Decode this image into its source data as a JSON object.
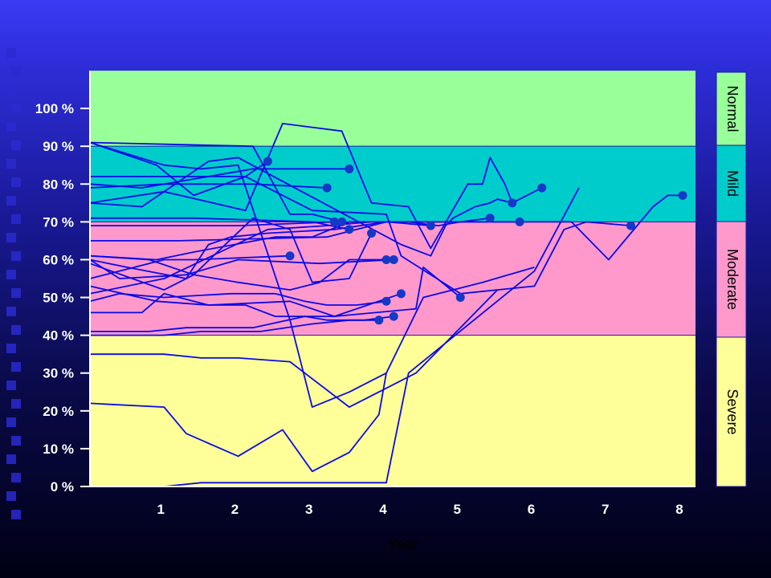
{
  "colors": {
    "background_top": "#3b3bf6",
    "background_bottom": "#000014",
    "line": "#0a0ae8",
    "marker": "#1538c8",
    "axis": "#ffffff"
  },
  "chart_data": {
    "type": "line",
    "xlabel": "Year",
    "ylabel": "",
    "xlim": [
      0,
      8.1
    ],
    "ylim": [
      0,
      110
    ],
    "x_ticks": [
      "1",
      "2",
      "3",
      "4",
      "5",
      "6",
      "7",
      "8"
    ],
    "y_ticks": [
      "0 %",
      "10 %",
      "20 %",
      "30 %",
      "40 %",
      "50 %",
      "60 %",
      "70 %",
      "80 %",
      "90 %",
      "100 %"
    ],
    "y_tick_values": [
      0,
      10,
      20,
      30,
      40,
      50,
      60,
      70,
      80,
      90,
      100
    ],
    "grid": false,
    "bands": [
      {
        "label": "Normal",
        "from": 90,
        "to": 110,
        "color": "#99ff99"
      },
      {
        "label": "Mild",
        "from": 70,
        "to": 90,
        "color": "#00cccc"
      },
      {
        "label": "Moderate",
        "from": 40,
        "to": 70,
        "color": "#ff99cc"
      },
      {
        "label": "Severe",
        "from": 0,
        "to": 40,
        "color": "#ffff99"
      }
    ],
    "series": [
      {
        "x": [
          0,
          0.9,
          1.4,
          2.1,
          2.4
        ],
        "y": [
          91,
          85,
          77,
          82,
          86
        ],
        "end_marker": true
      },
      {
        "x": [
          0,
          0.7,
          2.2,
          3.5
        ],
        "y": [
          80,
          79,
          84,
          84
        ],
        "end_marker": true
      },
      {
        "x": [
          0,
          1.0,
          2.2,
          3.2
        ],
        "y": [
          79,
          80,
          80,
          79
        ],
        "end_marker": true
      },
      {
        "x": [
          0,
          2.2,
          2.7,
          3.0,
          3.4
        ],
        "y": [
          91,
          90,
          72,
          72,
          70
        ],
        "end_marker": true
      },
      {
        "x": [
          0,
          1.4,
          3.0,
          3.5
        ],
        "y": [
          71,
          71,
          70,
          68
        ],
        "end_marker": true
      },
      {
        "x": [
          0,
          2.0,
          3.3
        ],
        "y": [
          69,
          69,
          70
        ],
        "end_marker": true
      },
      {
        "x": [
          0,
          1.0,
          1.4,
          2.2,
          2.7,
          3.0,
          3.5,
          3.8
        ],
        "y": [
          59,
          52,
          56,
          71,
          68,
          54,
          55,
          67
        ],
        "end_marker": true
      },
      {
        "x": [
          0,
          0.8,
          1.4,
          2.0,
          2.7,
          3.1,
          3.5,
          4.0
        ],
        "y": [
          61,
          60,
          56,
          54,
          52,
          54,
          60,
          60
        ],
        "end_marker": true
      },
      {
        "x": [
          0,
          1.0,
          1.4,
          2.7
        ],
        "y": [
          55,
          60,
          60,
          61
        ],
        "end_marker": true
      },
      {
        "x": [
          0,
          0.4,
          1.3,
          2.0,
          3.1,
          4.1
        ],
        "y": [
          60,
          55,
          56,
          60,
          59,
          60
        ],
        "end_marker": true
      },
      {
        "x": [
          0,
          1.2,
          3.2,
          4.0,
          4.5,
          5.3,
          5.5,
          5.8
        ],
        "y": [
          65,
          65,
          66,
          70,
          70,
          70,
          70,
          70
        ],
        "end_marker": true
      },
      {
        "x": [
          0,
          0.5,
          1.3,
          1.6,
          1.9,
          2.4,
          3.3,
          4.0,
          4.6
        ],
        "y": [
          60,
          58,
          55,
          64,
          66,
          67,
          68,
          70,
          69
        ],
        "end_marker": true
      },
      {
        "x": [
          0,
          1.0,
          2.4,
          3.2,
          3.8,
          4.3,
          4.7,
          5.0,
          5.4
        ],
        "y": [
          51,
          55,
          68,
          69,
          70,
          70,
          69,
          70,
          71
        ],
        "end_marker": true
      },
      {
        "x": [
          0,
          1.0,
          1.6,
          2.0,
          4.2,
          4.6,
          4.8,
          4.9,
          5.1,
          5.2,
          5.4,
          5.5,
          5.7,
          6.1
        ],
        "y": [
          75,
          78,
          86,
          87,
          64,
          61,
          69,
          71,
          73,
          74,
          75,
          76,
          75,
          79
        ],
        "end_marker": true
      },
      {
        "x": [
          0,
          0.7,
          1.0,
          2.1,
          2.6,
          3.4,
          3.8,
          4.3,
          4.6,
          5.1,
          5.3,
          5.4,
          5.6,
          5.7
        ],
        "y": [
          75,
          74,
          78,
          73,
          96,
          94,
          75,
          74,
          63,
          80,
          80,
          87,
          80,
          75
        ],
        "end_marker": true
      },
      {
        "x": [
          0,
          0.9,
          1.6,
          2.7,
          3.3,
          4.4,
          4.5,
          5.0
        ],
        "y": [
          53,
          49,
          48,
          49,
          45,
          47,
          58,
          50
        ],
        "end_marker": true
      },
      {
        "x": [
          0,
          0.4,
          1.0,
          1.9,
          2.5,
          2.9,
          3.2,
          3.6,
          4.0
        ],
        "y": [
          49,
          51,
          50,
          51,
          51,
          49,
          48,
          48,
          49
        ],
        "end_marker": true
      },
      {
        "x": [
          0,
          0.7,
          1.0,
          1.6,
          2.1,
          2.5,
          3.3,
          4.2
        ],
        "y": [
          46,
          46,
          51,
          48,
          48,
          45,
          45,
          51
        ],
        "end_marker": true
      },
      {
        "x": [
          0,
          0.8,
          1.3,
          2.2,
          2.9,
          3.2,
          3.9
        ],
        "y": [
          41,
          41,
          42,
          42,
          45,
          44,
          44
        ],
        "end_marker": true
      },
      {
        "x": [
          0,
          1.0,
          1.5,
          2.3,
          3.0,
          3.5,
          3.7,
          4.1
        ],
        "y": [
          40,
          40,
          41,
          41,
          43,
          44,
          44,
          45
        ],
        "end_marker": true
      },
      {
        "x": [
          0,
          0.9,
          1.4,
          2.5,
          3.0,
          3.5,
          4.3,
          4.5,
          5.2,
          6.2,
          6.5,
          7.0,
          7.3,
          7.6,
          7.8,
          8.0
        ],
        "y": [
          61,
          60,
          62,
          66,
          66,
          70,
          70,
          70,
          70,
          70,
          70,
          60,
          67,
          74,
          77,
          77
        ],
        "end_marker": true
      },
      {
        "x": [
          0,
          2.1,
          3.0,
          4.0,
          4.2,
          5.0,
          6.0,
          6.4,
          6.7,
          7.3
        ],
        "y": [
          82,
          82,
          73,
          72,
          61,
          51,
          53,
          68,
          70,
          69
        ],
        "end_marker": true
      },
      {
        "x": [
          0,
          1.0,
          1.5,
          2.0,
          2.7,
          3.5,
          4.0,
          4.4,
          5.5
        ],
        "y": [
          35,
          35,
          34,
          34,
          33,
          21,
          26,
          30,
          52
        ],
        "end_marker": false
      },
      {
        "x": [
          0,
          1.0,
          1.3,
          2.0,
          2.6,
          3.0,
          3.5,
          3.9,
          4.0
        ],
        "y": [
          22,
          21,
          14,
          8,
          15,
          4,
          9,
          19,
          30
        ],
        "end_marker": false
      },
      {
        "x": [
          0,
          1.0,
          1.5,
          4.0,
          4.3,
          6.0,
          6.6
        ],
        "y": [
          0,
          0,
          1,
          1,
          30,
          57,
          79
        ],
        "end_marker": false
      },
      {
        "x": [
          0,
          1.0,
          1.5,
          2.0,
          2.7,
          3.0,
          3.5,
          4.0,
          4.5,
          5.3,
          6.0
        ],
        "y": [
          91,
          85,
          84,
          85,
          44,
          21,
          25,
          30,
          50,
          54,
          58
        ],
        "end_marker": false
      }
    ]
  }
}
